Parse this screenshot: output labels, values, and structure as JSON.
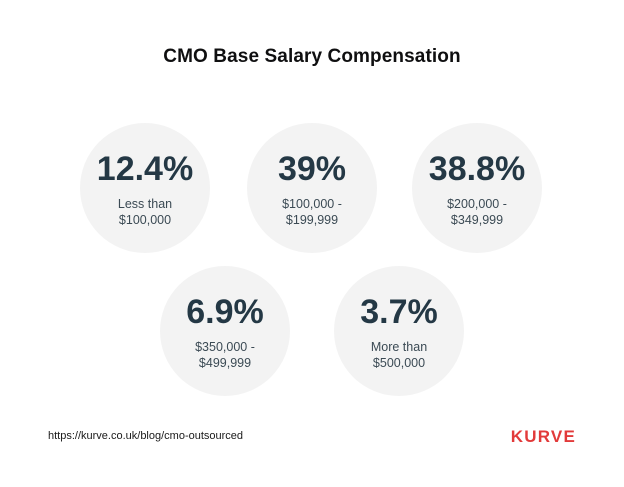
{
  "title": "CMO Base Salary Compensation",
  "stats": [
    {
      "percent": "12.4%",
      "label_line1": "Less than",
      "label_line2": "$100,000"
    },
    {
      "percent": "39%",
      "label_line1": "$100,000 -",
      "label_line2": "$199,999"
    },
    {
      "percent": "38.8%",
      "label_line1": "$200,000 -",
      "label_line2": "$349,999"
    },
    {
      "percent": "6.9%",
      "label_line1": "$350,000 -",
      "label_line2": "$499,999"
    },
    {
      "percent": "3.7%",
      "label_line1": "More than",
      "label_line2": "$500,000"
    }
  ],
  "footer": {
    "source_url": "https://kurve.co.uk/blog/cmo-outsourced",
    "logo_text": "KURVE"
  },
  "colors": {
    "circle_bg": "#f3f3f3",
    "percent_text": "#243845",
    "brand_red": "#e23a3a"
  }
}
